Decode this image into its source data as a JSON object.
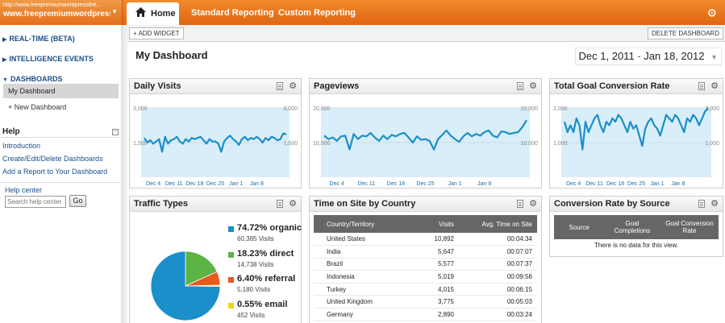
{
  "site": {
    "url": "http://www.freepremiumwordpressthe...",
    "name": "www.freepremiumwordpress..."
  },
  "topnav": {
    "home": "Home",
    "standard": "Standard Reporting",
    "custom": "Custom Reporting"
  },
  "sidebar": {
    "realtime": "REAL-TIME (BETA)",
    "intelligence": "INTELLIGENCE EVENTS",
    "dashboards": "DASHBOARDS",
    "my_dashboard": "My Dashboard",
    "new_dashboard": "+ New Dashboard",
    "help_heading": "Help",
    "help_links": [
      "Introduction",
      "Create/Edit/Delete Dashboards",
      "Add a Report to Your Dashboard"
    ],
    "help_center": "Help center",
    "search_placeholder": "Search help center",
    "go": "Go"
  },
  "toolbar": {
    "add_widget": "+ ADD WIDGET",
    "delete_dashboard": "DELETE DASHBOARD"
  },
  "page": {
    "title": "My Dashboard",
    "date_start": "Dec 1, 2011",
    "date_sep": "-",
    "date_end": "Jan 18, 2012"
  },
  "colors": {
    "brand_orange": "#e8701b",
    "line_blue": "#1a8fc9",
    "area_fill": "#d9eef8",
    "pie_organic": "#1a8fc9",
    "pie_direct": "#5cb346",
    "pie_referral": "#e8591c",
    "pie_email": "#f2d21b"
  },
  "widgets": {
    "daily_visits": {
      "title": "Daily Visits"
    },
    "pageviews": {
      "title": "Pageviews"
    },
    "goal_conv": {
      "title": "Total Goal Conversion Rate"
    },
    "traffic": {
      "title": "Traffic Types",
      "items": [
        {
          "label": "74.72% organic",
          "sub": "60,385 Visits"
        },
        {
          "label": "18.23% direct",
          "sub": "14,738 Visits"
        },
        {
          "label": "6.40% referral",
          "sub": "5,180 Visits"
        },
        {
          "label": "0.55% email",
          "sub": "452 Visits"
        }
      ]
    },
    "time_country": {
      "title": "Time on Site by Country",
      "headers": [
        "Country/Territory",
        "Visits",
        "Avg. Time on Site"
      ],
      "rows": [
        [
          "United States",
          "10,892",
          "00:04:34"
        ],
        [
          "India",
          "5,647",
          "00:07:07"
        ],
        [
          "Brazil",
          "5,577",
          "00:07:37"
        ],
        [
          "Indonesia",
          "5,019",
          "00:09:56"
        ],
        [
          "Turkey",
          "4,015",
          "00:06:15"
        ],
        [
          "United Kingdom",
          "3,775",
          "00:05:03"
        ],
        [
          "Germany",
          "2,890",
          "00:03:24"
        ]
      ]
    },
    "conv_source": {
      "title": "Conversion Rate by Source",
      "headers": [
        "Source",
        "Goal Completions",
        "Goal Conversion Rate"
      ],
      "no_data": "There is no data for this view."
    }
  },
  "chart_data": [
    {
      "type": "area",
      "series": [
        {
          "name": "Daily Visits",
          "values": [
            1700,
            1500,
            1600,
            1450,
            1550,
            1650,
            1100,
            1750,
            1450,
            1600,
            1650,
            1750,
            1550,
            1450,
            1650,
            1550,
            1700,
            1650,
            1700,
            1750,
            1600,
            1450,
            1650,
            1550,
            1550,
            1450,
            1100,
            1550,
            1700,
            1800,
            1650,
            1550,
            1400,
            1650,
            1750,
            1600,
            1700,
            1650,
            1750,
            1650,
            1500,
            1700,
            1600,
            1750,
            1700,
            1600,
            1650,
            1900,
            1850
          ]
        }
      ],
      "x_ticks": [
        "Dec 4",
        "Dec 11",
        "Dec 18",
        "Dec 25",
        "Jan 1",
        "Jan 8"
      ],
      "y_ticks_left": [
        "3,000",
        "1,500"
      ],
      "y_ticks_right": [
        "3,000",
        "1,500"
      ],
      "ylim": [
        0,
        3000
      ]
    },
    {
      "type": "area",
      "series": [
        {
          "name": "Pageviews",
          "values": [
            12000,
            11000,
            11500,
            10500,
            11800,
            12000,
            8000,
            12500,
            11000,
            12000,
            11800,
            12800,
            11500,
            10500,
            12000,
            11000,
            12200,
            11800,
            12500,
            12800,
            11500,
            10000,
            11800,
            10800,
            11000,
            10500,
            8000,
            11000,
            12200,
            13500,
            12000,
            11000,
            10200,
            11800,
            12800,
            11800,
            12500,
            12000,
            13000,
            13500,
            12000,
            11500,
            13200,
            13000,
            12500,
            12800,
            13000,
            14500,
            16500
          ]
        }
      ],
      "x_ticks": [
        "Dec 4",
        "Dec 11",
        "Dec 18",
        "Dec 25",
        "Jan 1",
        "Jan 8"
      ],
      "y_ticks_left": [
        "20,000",
        "10,000"
      ],
      "y_ticks_right": [
        "20,000",
        "10,000"
      ],
      "ylim": [
        0,
        20000
      ]
    },
    {
      "type": "area",
      "series": [
        {
          "name": "Total Goal Conversion Rate",
          "values": [
            1600,
            1300,
            1500,
            1300,
            1700,
            1500,
            800,
            1600,
            1300,
            1500,
            1700,
            1800,
            1500,
            1300,
            1600,
            1500,
            1700,
            1600,
            1800,
            1700,
            1500,
            1300,
            1600,
            1400,
            1500,
            1200,
            900,
            1400,
            1600,
            1700,
            1500,
            1400,
            1200,
            1500,
            1800,
            1700,
            1600,
            1800,
            1700,
            1500,
            1300,
            1700,
            1600,
            1800,
            1700,
            1500,
            1700,
            1900,
            2000
          ]
        }
      ],
      "x_ticks": [
        "Dec 4",
        "Dec 11",
        "Dec 18",
        "Dec 25",
        "Jan 1",
        "Jan 8"
      ],
      "y_ticks_left": [
        "2,000",
        "1,000"
      ],
      "y_ticks_right": [
        "2,000",
        "1,000"
      ],
      "ylim": [
        0,
        2000
      ]
    },
    {
      "type": "pie",
      "categories": [
        "organic",
        "direct",
        "referral",
        "email"
      ],
      "values": [
        74.72,
        18.23,
        6.4,
        0.55
      ]
    }
  ]
}
